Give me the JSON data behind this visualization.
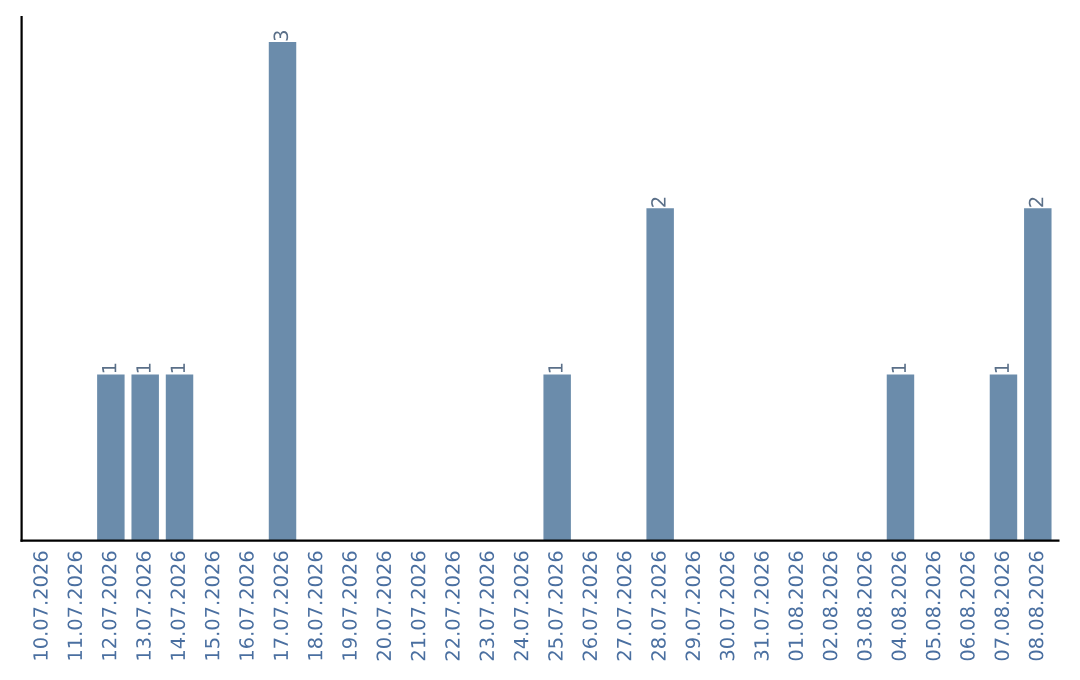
{
  "chart_data": {
    "type": "bar",
    "categories": [
      "10.07.2026",
      "11.07.2026",
      "12.07.2026",
      "13.07.2026",
      "14.07.2026",
      "15.07.2026",
      "16.07.2026",
      "17.07.2026",
      "18.07.2026",
      "19.07.2026",
      "20.07.2026",
      "21.07.2026",
      "22.07.2026",
      "23.07.2026",
      "24.07.2026",
      "25.07.2026",
      "26.07.2026",
      "27.07.2026",
      "28.07.2026",
      "29.07.2026",
      "30.07.2026",
      "31.07.2026",
      "01.08.2026",
      "02.08.2026",
      "03.08.2026",
      "04.08.2026",
      "05.08.2026",
      "06.08.2026",
      "07.08.2026",
      "08.08.2026"
    ],
    "values": [
      0,
      0,
      1,
      1,
      1,
      0,
      0,
      3,
      0,
      0,
      0,
      0,
      0,
      0,
      0,
      1,
      0,
      0,
      2,
      0,
      0,
      0,
      0,
      0,
      0,
      1,
      0,
      0,
      1,
      2
    ],
    "value_labels": [
      null,
      null,
      "1",
      "1",
      "1",
      null,
      null,
      "3",
      null,
      null,
      null,
      null,
      null,
      null,
      null,
      "1",
      null,
      null,
      "2",
      null,
      null,
      null,
      null,
      null,
      null,
      "1",
      null,
      null,
      "1",
      "2"
    ],
    "color": "#6b8cab",
    "ylim": [
      0,
      3.15
    ],
    "tick_labels": "x",
    "grid": false,
    "legend": false
  }
}
